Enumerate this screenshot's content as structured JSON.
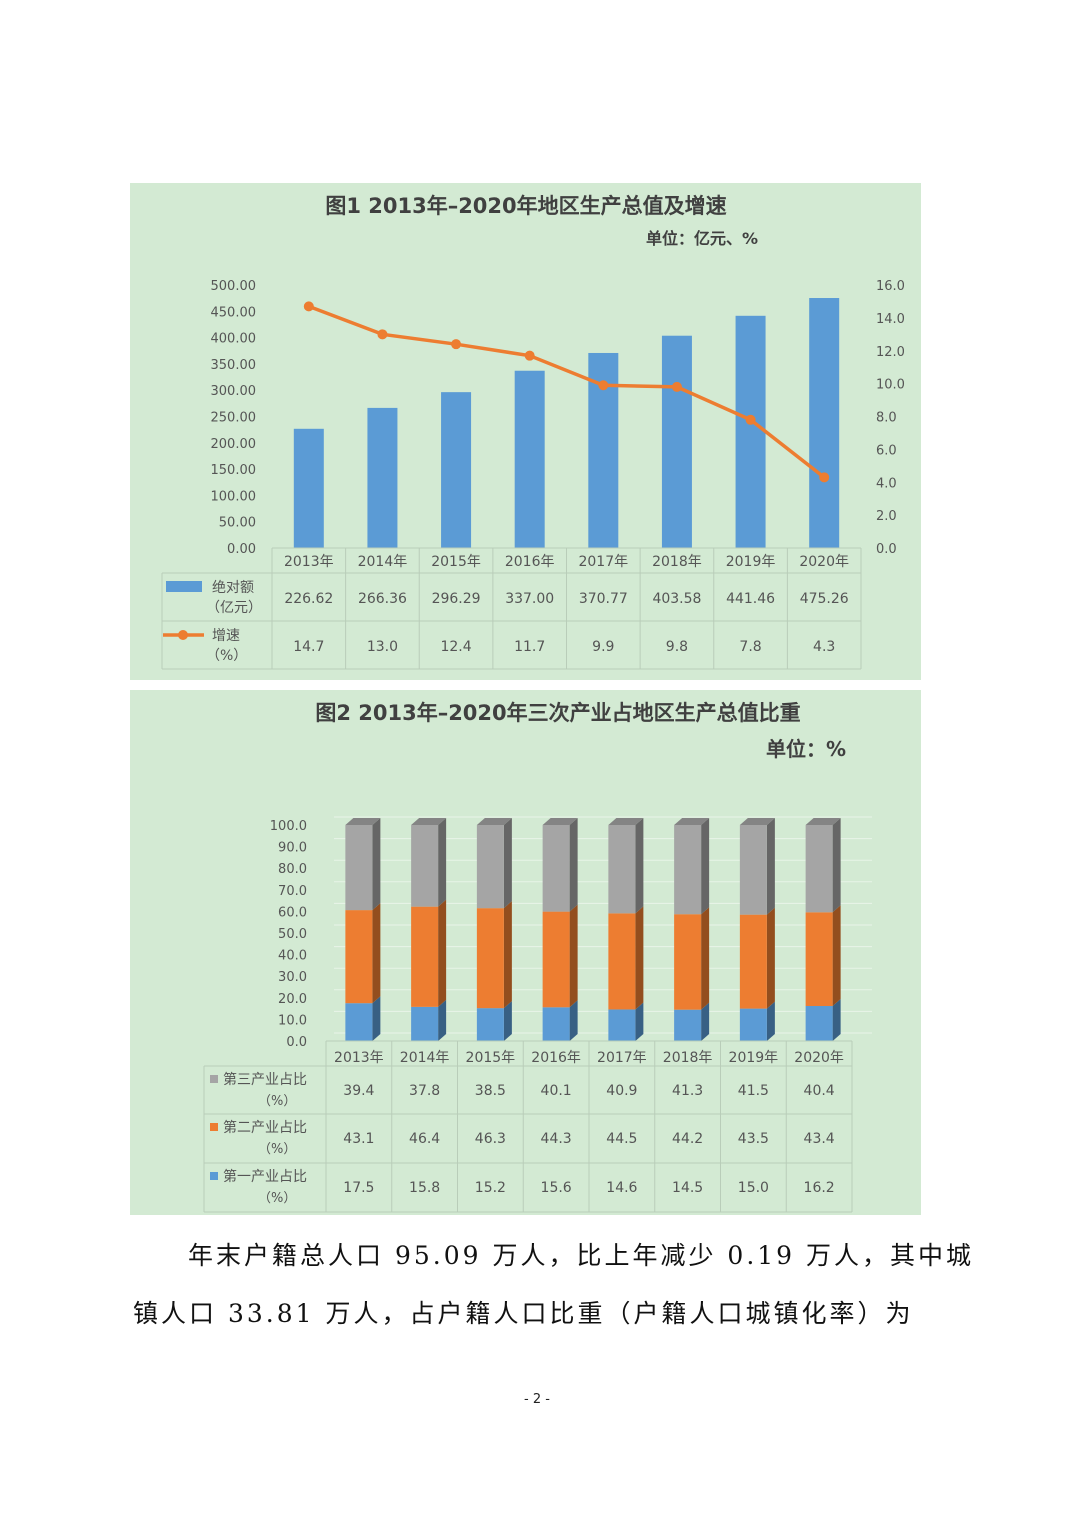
{
  "chart_data": [
    {
      "type": "bar",
      "title": "图1  2013年–2020年地区生产总值及增速",
      "subtitle": "单位：亿元、%",
      "categories": [
        "2013年",
        "2014年",
        "2015年",
        "2016年",
        "2017年",
        "2018年",
        "2019年",
        "2020年"
      ],
      "series": [
        {
          "name": "绝对额",
          "unit_label": "（亿元）",
          "type": "bar",
          "axis": "left",
          "color": "#5b9bd5",
          "values": [
            226.62,
            266.36,
            296.29,
            337.0,
            370.77,
            403.58,
            441.46,
            475.26
          ],
          "labels": [
            "226.62",
            "266.36",
            "296.29",
            "337.00",
            "370.77",
            "403.58",
            "441.46",
            "475.26"
          ]
        },
        {
          "name": "增速",
          "unit_label": "（%）",
          "type": "line",
          "axis": "right",
          "color": "#ed7d31",
          "values": [
            14.7,
            13.0,
            12.4,
            11.7,
            9.9,
            9.8,
            7.8,
            4.3
          ],
          "labels": [
            "14.7",
            "13.0",
            "12.4",
            "11.7",
            "9.9",
            "9.8",
            "7.8",
            "4.3"
          ]
        }
      ],
      "ylim_left": [
        0,
        500
      ],
      "ylim_right": [
        0,
        16
      ],
      "yticks_left": [
        "0.00",
        "50.00",
        "100.00",
        "150.00",
        "200.00",
        "250.00",
        "300.00",
        "350.00",
        "400.00",
        "450.00",
        "500.00"
      ],
      "yticks_right": [
        "0.0",
        "2.0",
        "4.0",
        "6.0",
        "8.0",
        "10.0",
        "12.0",
        "14.0",
        "16.0"
      ],
      "data_table": true
    },
    {
      "type": "bar",
      "stacked": true,
      "title": "图2  2013年–2020年三次产业占地区生产总值比重",
      "subtitle": "单位：%",
      "categories": [
        "2013年",
        "2014年",
        "2015年",
        "2016年",
        "2017年",
        "2018年",
        "2019年",
        "2020年"
      ],
      "series": [
        {
          "name": "第三产业占比",
          "unit_label": "（%）",
          "color": "#a5a5a5",
          "values": [
            39.4,
            37.8,
            38.5,
            40.1,
            40.9,
            41.3,
            41.5,
            40.4
          ],
          "labels": [
            "39.4",
            "37.8",
            "38.5",
            "40.1",
            "40.9",
            "41.3",
            "41.5",
            "40.4"
          ]
        },
        {
          "name": "第二产业占比",
          "unit_label": "（%）",
          "color": "#ed7d31",
          "values": [
            43.1,
            46.4,
            46.3,
            44.3,
            44.5,
            44.2,
            43.5,
            43.4
          ],
          "labels": [
            "43.1",
            "46.4",
            "46.3",
            "44.3",
            "44.5",
            "44.2",
            "43.5",
            "43.4"
          ]
        },
        {
          "name": "第一产业占比",
          "unit_label": "（%）",
          "color": "#5b9bd5",
          "values": [
            17.5,
            15.8,
            15.2,
            15.6,
            14.6,
            14.5,
            15.0,
            16.2
          ],
          "labels": [
            "17.5",
            "15.8",
            "15.2",
            "15.6",
            "14.6",
            "14.5",
            "15.0",
            "16.2"
          ]
        }
      ],
      "ylim": [
        0,
        100
      ],
      "yticks": [
        "0.0",
        "10.0",
        "20.0",
        "30.0",
        "40.0",
        "50.0",
        "60.0",
        "70.0",
        "80.0",
        "90.0",
        "100.0"
      ],
      "data_table": true
    }
  ],
  "text": {
    "paragraph_line1": "年末户籍总人口 95.09 万人，比上年减少 0.19 万人，其中城",
    "paragraph_line2": "镇人口  33.81  万人，占户籍人口比重（户籍人口城镇化率）为",
    "page_number": "- 2 -"
  }
}
